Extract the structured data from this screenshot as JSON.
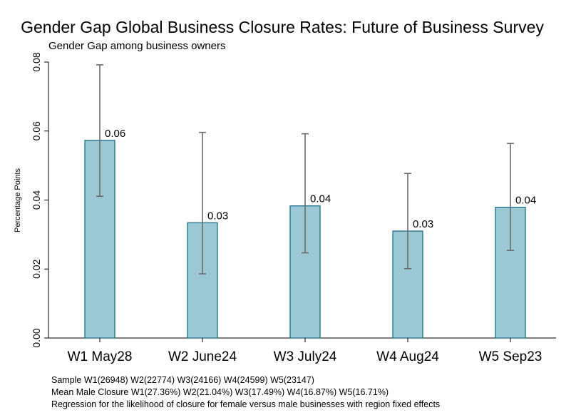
{
  "chart_data": {
    "type": "bar",
    "title": "Gender Gap Global Business Closure Rates: Future of Business Survey",
    "subtitle": "Gender Gap among business owners",
    "ylabel": "Percentage Points",
    "xlabel": "",
    "ylim": [
      0,
      0.08
    ],
    "yticks": [
      "0.00",
      "0.02",
      "0.04",
      "0.06",
      "0.08"
    ],
    "categories": [
      "W1 May28",
      "W2 June24",
      "W3 July24",
      "W4 Aug24",
      "W5 Sep23"
    ],
    "values": [
      0.0573,
      0.0334,
      0.0383,
      0.031,
      0.0379
    ],
    "ci_low": [
      0.0411,
      0.0186,
      0.0247,
      0.0201,
      0.0254
    ],
    "ci_high": [
      0.0792,
      0.0596,
      0.0592,
      0.0477,
      0.0564
    ],
    "data_labels": [
      "0.06",
      "0.03",
      "0.04",
      "0.03",
      "0.04"
    ],
    "grid": false,
    "colors": {
      "bar_fill": "#9cc7d5",
      "bar_stroke": "#1f6f8b",
      "error_bar": "#6b6b6b"
    }
  },
  "notes": [
    "Sample W1(26948) W2(22774) W3(24166) W4(24599) W5(23147)",
    "Mean Male Closure W1(27.36%) W2(21.04%) W3(17.49%) W4(16.87%) W5(16.71%)",
    "Regression for the likelihood of closure for female versus male businesses with region fixed effects"
  ]
}
